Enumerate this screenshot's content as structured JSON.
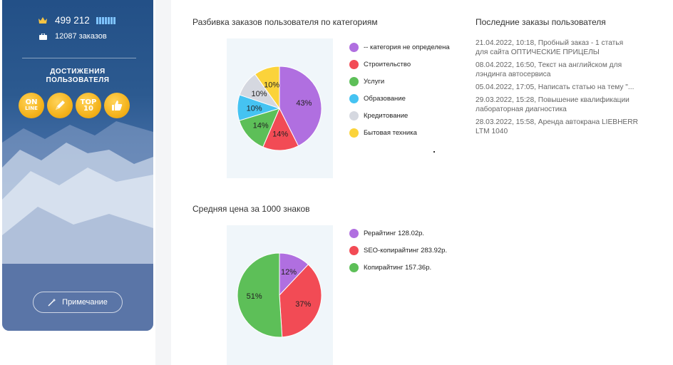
{
  "sidebar": {
    "points": "499 212",
    "orders_count": "12087 заказов",
    "achievements_title_line1": "ДОСТИЖЕНИЯ",
    "achievements_title_line2": "ПОЛЬЗОВАТЕЛЯ",
    "badges": [
      {
        "name": "online-badge",
        "line1": "ON",
        "line2": "LINE"
      },
      {
        "name": "writer-badge",
        "icon": "pencil-icon"
      },
      {
        "name": "top10-badge",
        "line1": "TOP",
        "line2": "10"
      },
      {
        "name": "like-badge",
        "icon": "thumbs-up-icon"
      }
    ],
    "note_button": "Примечание",
    "level_bars": 7
  },
  "categories_section": {
    "title": "Разбивка заказов пользователя по категориям"
  },
  "price_section": {
    "title": "Средняя цена за 1000 знаков"
  },
  "recent_orders": {
    "title": "Последние заказы пользователя",
    "items": [
      {
        "line1": "21.04.2022, 10:18, Пробный заказ - 1 статья",
        "line2": "для сайта ОПТИЧЕСКИЕ ПРИЦЕЛЫ"
      },
      {
        "line1": "08.04.2022, 16:50, Текст на английском для",
        "line2": "лэндинга автосервиса"
      },
      {
        "line1": "05.04.2022, 17:05, Написать статью на тему \"...",
        "line2": ""
      },
      {
        "line1": "29.03.2022, 15:28, Повышение квалификации",
        "line2": "лабораторная диагностика"
      },
      {
        "line1": "28.03.2022, 15:58, Аренда автокрана LIEBHERR",
        "line2": "LTM 1040"
      }
    ]
  },
  "chart_data": [
    {
      "type": "pie",
      "title": "Разбивка заказов пользователя по категориям",
      "categories": [
        "-- категория не определена",
        "Строительство",
        "Услуги",
        "Образование",
        "Кредитование",
        "Бытовая техника"
      ],
      "values": [
        43,
        14,
        14,
        10,
        10,
        10
      ],
      "labels": [
        "43%",
        "14%",
        "14%",
        "10%",
        "10%",
        "10%"
      ],
      "colors": [
        "#b06fe0",
        "#f24b55",
        "#5dbf58",
        "#45c3f2",
        "#d5d8e0",
        "#fbd33a"
      ],
      "legend": "right"
    },
    {
      "type": "pie",
      "title": "Средняя цена за 1000 знаков",
      "categories": [
        "Рерайтинг 128.02р.",
        "SEO-копирайтинг 283.92р.",
        "Копирайтинг 157.36р."
      ],
      "values": [
        12,
        37,
        51
      ],
      "labels": [
        "12%",
        "37%",
        "51%"
      ],
      "colors": [
        "#b06fe0",
        "#f24b55",
        "#5dbf58"
      ],
      "legend": "right"
    }
  ]
}
